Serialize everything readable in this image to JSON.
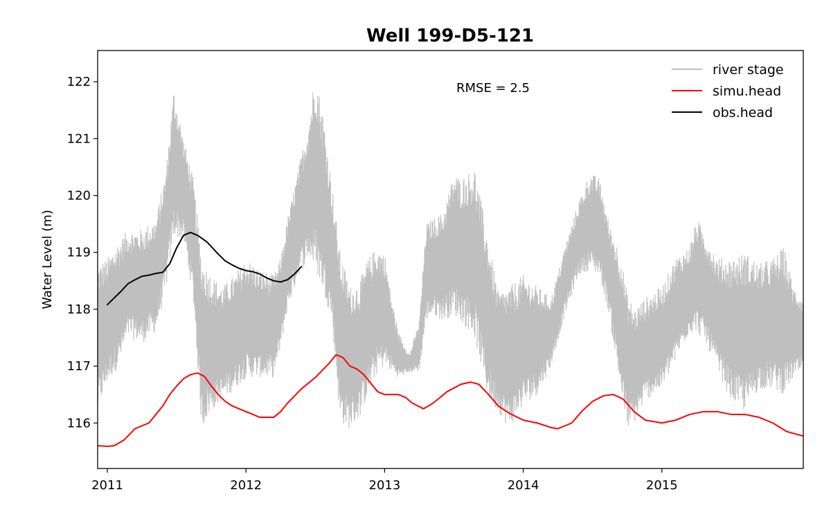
{
  "chart_data": {
    "type": "line",
    "title": "Well 199-D5-121",
    "xlabel": "",
    "ylabel": "Water Level (m)",
    "xlim": [
      2010.93,
      2016.02
    ],
    "ylim": [
      115.2,
      122.55
    ],
    "x_ticks": [
      2011,
      2012,
      2013,
      2014,
      2015
    ],
    "x_tick_labels": [
      "2011",
      "2012",
      "2013",
      "2014",
      "2015"
    ],
    "y_ticks": [
      116,
      117,
      118,
      119,
      120,
      121,
      122
    ],
    "y_tick_labels": [
      "116",
      "117",
      "118",
      "119",
      "120",
      "121",
      "122"
    ],
    "grid": false,
    "legend_position": "top-right",
    "annotation": "RMSE = 2.5",
    "series": [
      {
        "name": "river stage",
        "color": "#bfbfbf",
        "envelope": true,
        "x": [
          2010.93,
          2011.0,
          2011.08,
          2011.15,
          2011.25,
          2011.35,
          2011.42,
          2011.48,
          2011.55,
          2011.62,
          2011.68,
          2011.75,
          2011.83,
          2011.92,
          2012.0,
          2012.1,
          2012.2,
          2012.25,
          2012.3,
          2012.38,
          2012.45,
          2012.5,
          2012.56,
          2012.62,
          2012.68,
          2012.75,
          2012.82,
          2012.88,
          2012.95,
          2013.0,
          2013.05,
          2013.1,
          2013.18,
          2013.25,
          2013.3,
          2013.35,
          2013.42,
          2013.5,
          2013.55,
          2013.65,
          2013.75,
          2013.82,
          2013.9,
          2014.0,
          2014.1,
          2014.2,
          2014.3,
          2014.4,
          2014.48,
          2014.55,
          2014.62,
          2014.7,
          2014.75,
          2014.8,
          2014.88,
          2015.0,
          2015.1,
          2015.2,
          2015.25,
          2015.32,
          2015.4,
          2015.5,
          2015.6,
          2015.7,
          2015.8,
          2015.88,
          2015.95,
          2016.02
        ],
        "high": [
          118.8,
          118.9,
          119.2,
          119.4,
          119.4,
          119.6,
          120.4,
          121.9,
          121.0,
          120.3,
          118.9,
          118.6,
          118.4,
          118.6,
          118.9,
          118.7,
          118.6,
          118.9,
          119.6,
          120.5,
          121.3,
          122.2,
          121.4,
          120.2,
          119.0,
          118.4,
          118.5,
          118.9,
          119.1,
          119.0,
          118.2,
          117.6,
          117.2,
          117.8,
          119.5,
          119.6,
          119.7,
          120.4,
          120.3,
          120.5,
          119.2,
          118.3,
          118.4,
          118.6,
          118.4,
          118.2,
          119.1,
          119.9,
          120.4,
          120.3,
          119.5,
          119.0,
          118.3,
          118.0,
          118.2,
          118.4,
          118.9,
          119.1,
          119.6,
          119.3,
          118.9,
          118.9,
          119.0,
          118.8,
          118.9,
          119.1,
          118.4,
          118.2
        ],
        "low": [
          116.2,
          116.7,
          117.0,
          117.5,
          117.4,
          117.6,
          118.3,
          119.3,
          119.2,
          118.2,
          115.9,
          116.2,
          116.4,
          116.6,
          116.8,
          116.8,
          116.8,
          117.3,
          118.0,
          118.6,
          118.9,
          118.7,
          118.3,
          117.8,
          116.0,
          115.9,
          116.1,
          116.5,
          116.9,
          117.0,
          116.9,
          116.8,
          116.9,
          116.9,
          117.8,
          117.9,
          117.8,
          117.9,
          117.8,
          117.5,
          116.4,
          116.2,
          115.9,
          116.3,
          116.5,
          117.0,
          117.9,
          118.6,
          118.7,
          118.6,
          117.9,
          116.6,
          115.9,
          116.0,
          116.4,
          116.6,
          117.1,
          117.6,
          117.6,
          117.4,
          116.9,
          116.4,
          116.2,
          116.6,
          116.6,
          116.5,
          116.8,
          116.9
        ]
      },
      {
        "name": "simu.head",
        "color": "#ff0000",
        "x": [
          2010.93,
          2011.0,
          2011.05,
          2011.12,
          2011.2,
          2011.3,
          2011.4,
          2011.45,
          2011.5,
          2011.55,
          2011.6,
          2011.65,
          2011.7,
          2011.75,
          2011.8,
          2011.85,
          2011.9,
          2011.95,
          2012.0,
          2012.1,
          2012.2,
          2012.25,
          2012.3,
          2012.4,
          2012.5,
          2012.6,
          2012.65,
          2012.7,
          2012.75,
          2012.8,
          2012.85,
          2012.9,
          2012.95,
          2013.0,
          2013.1,
          2013.15,
          2013.2,
          2013.28,
          2013.35,
          2013.45,
          2013.55,
          2013.62,
          2013.68,
          2013.75,
          2013.82,
          2013.9,
          2014.0,
          2014.1,
          2014.2,
          2014.25,
          2014.3,
          2014.35,
          2014.42,
          2014.5,
          2014.58,
          2014.65,
          2014.72,
          2014.8,
          2014.88,
          2015.0,
          2015.1,
          2015.2,
          2015.3,
          2015.4,
          2015.5,
          2015.6,
          2015.7,
          2015.8,
          2015.9,
          2016.02
        ],
        "y": [
          115.6,
          115.59,
          115.6,
          115.7,
          115.9,
          116.0,
          116.3,
          116.5,
          116.65,
          116.78,
          116.85,
          116.88,
          116.82,
          116.65,
          116.5,
          116.38,
          116.3,
          116.25,
          116.2,
          116.1,
          116.1,
          116.2,
          116.35,
          116.6,
          116.8,
          117.05,
          117.2,
          117.15,
          117.0,
          116.95,
          116.85,
          116.7,
          116.55,
          116.5,
          116.5,
          116.45,
          116.35,
          116.25,
          116.35,
          116.55,
          116.68,
          116.72,
          116.68,
          116.5,
          116.3,
          116.17,
          116.05,
          116.0,
          115.92,
          115.9,
          115.95,
          116.0,
          116.2,
          116.38,
          116.48,
          116.5,
          116.42,
          116.2,
          116.05,
          116.0,
          116.05,
          116.15,
          116.2,
          116.2,
          116.15,
          116.15,
          116.1,
          116.0,
          115.85,
          115.77
        ]
      },
      {
        "name": "obs.head",
        "color": "#000000",
        "x": [
          2011.0,
          2011.05,
          2011.1,
          2011.15,
          2011.2,
          2011.25,
          2011.3,
          2011.35,
          2011.4,
          2011.45,
          2011.5,
          2011.55,
          2011.6,
          2011.65,
          2011.68,
          2011.72,
          2011.75,
          2011.8,
          2011.85,
          2011.9,
          2011.95,
          2012.0,
          2012.05,
          2012.1,
          2012.15,
          2012.2,
          2012.25,
          2012.3,
          2012.35,
          2012.4
        ],
        "y": [
          118.08,
          118.2,
          118.32,
          118.45,
          118.52,
          118.58,
          118.6,
          118.63,
          118.65,
          118.8,
          119.08,
          119.3,
          119.35,
          119.3,
          119.25,
          119.18,
          119.1,
          118.97,
          118.85,
          118.78,
          118.72,
          118.68,
          118.66,
          118.62,
          118.55,
          118.5,
          118.48,
          118.52,
          118.62,
          118.75
        ]
      }
    ]
  }
}
